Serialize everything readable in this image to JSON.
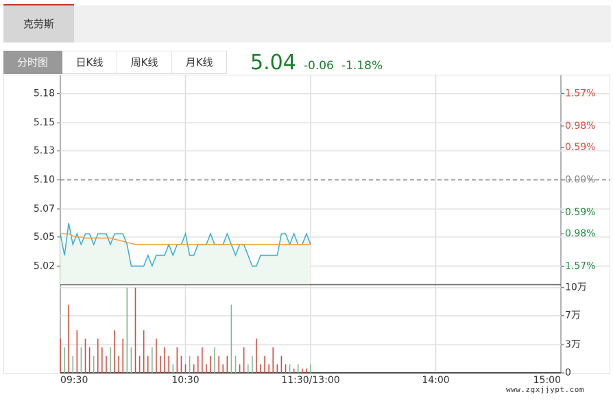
{
  "header": {
    "stock_name": "克劳斯"
  },
  "tabs": [
    "分时图",
    "日K线",
    "周K线",
    "月K线"
  ],
  "quote": {
    "price": 5.04,
    "change": -0.06,
    "change_pct": "-1.18%"
  },
  "watermark": "www.zgxjjypt.com",
  "chart_data": {
    "type": "line",
    "x": [
      "09:30",
      "09:32",
      "09:34",
      "09:36",
      "09:38",
      "09:40",
      "09:42",
      "09:44",
      "09:46",
      "09:48",
      "09:50",
      "09:52",
      "09:54",
      "09:56",
      "09:58",
      "10:00",
      "10:02",
      "10:04",
      "10:06",
      "10:08",
      "10:10",
      "10:12",
      "10:14",
      "10:16",
      "10:18",
      "10:20",
      "10:22",
      "10:24",
      "10:26",
      "10:28",
      "10:30",
      "10:32",
      "10:34",
      "10:36",
      "10:38",
      "10:40",
      "10:42",
      "10:44",
      "10:46",
      "10:48",
      "10:50",
      "10:52",
      "10:54",
      "10:56",
      "10:58",
      "11:00",
      "11:02",
      "11:04",
      "11:06",
      "11:08",
      "11:10",
      "11:12",
      "11:14",
      "11:16",
      "11:18",
      "11:20",
      "11:22",
      "11:24",
      "11:26",
      "11:28",
      "11:30"
    ],
    "series": [
      {
        "color": "#3aaed0",
        "values": [
          5.05,
          5.03,
          5.06,
          5.04,
          5.05,
          5.04,
          5.05,
          5.05,
          5.04,
          5.05,
          5.05,
          5.05,
          5.04,
          5.05,
          5.05,
          5.05,
          5.04,
          5.02,
          5.02,
          5.02,
          5.02,
          5.03,
          5.02,
          5.03,
          5.03,
          5.03,
          5.04,
          5.03,
          5.04,
          5.04,
          5.05,
          5.03,
          5.03,
          5.04,
          5.04,
          5.04,
          5.05,
          5.04,
          5.04,
          5.04,
          5.05,
          5.04,
          5.03,
          5.04,
          5.04,
          5.03,
          5.02,
          5.02,
          5.03,
          5.03,
          5.03,
          5.03,
          5.03,
          5.05,
          5.05,
          5.04,
          5.05,
          5.04,
          5.04,
          5.05,
          5.04
        ]
      },
      {
        "color": "#f0a040",
        "values": [
          5.05,
          5.05,
          5.05,
          5.048,
          5.047,
          5.047,
          5.046,
          5.046,
          5.046,
          5.046,
          5.046,
          5.046,
          5.046,
          5.045,
          5.044,
          5.043,
          5.042,
          5.041,
          5.04,
          5.04,
          5.04,
          5.04,
          5.04,
          5.04,
          5.04,
          5.04,
          5.04,
          5.04,
          5.04,
          5.04,
          5.04,
          5.04,
          5.04,
          5.04,
          5.04,
          5.04,
          5.04,
          5.04,
          5.04,
          5.04,
          5.04,
          5.04,
          5.04,
          5.04,
          5.04,
          5.04,
          5.04,
          5.04,
          5.04,
          5.04,
          5.04,
          5.04,
          5.04,
          5.04,
          5.04,
          5.04,
          5.04,
          5.04,
          5.04,
          5.04,
          5.04
        ]
      }
    ],
    "area_color": "#eef7f0",
    "prev_close": 5.1,
    "xlim": [
      "09:30",
      "15:00"
    ],
    "xticks": [
      "09:30",
      "10:30",
      {
        "value": "11:30",
        "label": "11:30/13:00"
      },
      "14:00",
      "15:00"
    ],
    "ylim": [
      5.003,
      5.197
    ],
    "yticks": [
      5.18,
      {
        "value": 5.153,
        "label": "5.15"
      },
      {
        "value": 5.127,
        "label": "5.13"
      },
      {
        "value": 5.1,
        "label": "5.10"
      },
      {
        "value": 5.073,
        "label": "5.07"
      },
      {
        "value": 5.047,
        "label": "5.05"
      },
      5.02
    ],
    "y2lim": [
      -1.902,
      1.902
    ],
    "y2ticks": [
      {
        "value": 1.57,
        "label": "1.57%"
      },
      {
        "value": 0.98,
        "label": "0.98%"
      },
      {
        "value": 0.59,
        "label": "0.59%"
      },
      {
        "value": 0,
        "label": "0.00%"
      },
      {
        "value": -0.59,
        "label": "0.59%"
      },
      {
        "value": -0.98,
        "label": "0.98%"
      },
      {
        "value": -1.57,
        "label": "1.57%"
      }
    ],
    "up_color": "#e0473a",
    "down_color": "#1a8a3a",
    "flat_color": "#888888",
    "grid": true,
    "volume": {
      "values": [
        4,
        3,
        8,
        2,
        5,
        3,
        4,
        3,
        2,
        4,
        3,
        2,
        3,
        5,
        2,
        4,
        10,
        3,
        10,
        2,
        5,
        2,
        3,
        4,
        2,
        3,
        2,
        1,
        3,
        2,
        1,
        2,
        1,
        2,
        3,
        1,
        2,
        3,
        2,
        1,
        2,
        8,
        2,
        1,
        3,
        1,
        2,
        4,
        1,
        2,
        1,
        3,
        1,
        2,
        1,
        1,
        0.5,
        1,
        0.5,
        0.5,
        1
      ],
      "ylim": [
        0,
        10.3
      ],
      "yticks": [
        {
          "value": 10,
          "label": "10万"
        },
        {
          "value": 6.7,
          "label": "7万"
        },
        {
          "value": 3.3,
          "label": "3万"
        },
        0
      ],
      "up_color": "#e0473a",
      "down_color": "#7fb98f"
    }
  }
}
